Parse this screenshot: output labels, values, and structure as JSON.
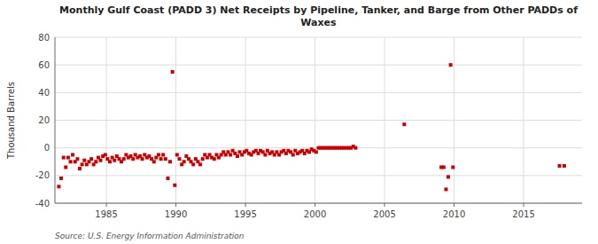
{
  "chart_data": {
    "type": "scatter",
    "title": "Monthly Gulf Coast (PADD 3) Net Receipts by Pipeline, Tanker, and Barge from Other PADDs of\nWaxes",
    "y_label": "Thousand Barrels",
    "annotations": [
      "Source: U.S. Energy Information Administration"
    ],
    "color": "#cc0000",
    "marker": "square",
    "grid": true,
    "xlim": [
      1981.3,
      2019.2
    ],
    "xticks": [
      1985,
      1990,
      1995,
      2000,
      2005,
      2010,
      2015
    ],
    "ylim": [
      -40,
      80
    ],
    "yticks": [
      -40,
      -20,
      0,
      20,
      40,
      60,
      80
    ],
    "x": [
      1981.58,
      1981.75,
      1981.92,
      1982.08,
      1982.25,
      1982.42,
      1982.58,
      1982.75,
      1982.92,
      1983.08,
      1983.25,
      1983.42,
      1983.58,
      1983.75,
      1983.92,
      1984.08,
      1984.25,
      1984.42,
      1984.58,
      1984.75,
      1984.92,
      1985.08,
      1985.25,
      1985.42,
      1985.58,
      1985.75,
      1985.92,
      1986.08,
      1986.25,
      1986.42,
      1986.58,
      1986.75,
      1986.92,
      1987.08,
      1987.25,
      1987.42,
      1987.58,
      1987.75,
      1987.92,
      1988.08,
      1988.25,
      1988.42,
      1988.58,
      1988.75,
      1988.92,
      1989.08,
      1989.25,
      1989.42,
      1989.58,
      1989.75,
      1989.92,
      1990.08,
      1990.25,
      1990.42,
      1990.58,
      1990.75,
      1990.92,
      1991.08,
      1991.25,
      1991.42,
      1991.58,
      1991.75,
      1991.92,
      1992.08,
      1992.25,
      1992.42,
      1992.58,
      1992.75,
      1992.92,
      1993.08,
      1993.25,
      1993.42,
      1993.58,
      1993.75,
      1993.92,
      1994.08,
      1994.25,
      1994.42,
      1994.58,
      1994.75,
      1994.92,
      1995.08,
      1995.25,
      1995.42,
      1995.58,
      1995.75,
      1995.92,
      1996.08,
      1996.25,
      1996.42,
      1996.58,
      1996.75,
      1996.92,
      1997.08,
      1997.25,
      1997.42,
      1997.58,
      1997.75,
      1997.92,
      1998.08,
      1998.25,
      1998.42,
      1998.58,
      1998.75,
      1998.92,
      1999.08,
      1999.25,
      1999.42,
      1999.58,
      1999.75,
      1999.92,
      2000.08,
      2000.25,
      2000.42,
      2000.58,
      2000.75,
      2000.92,
      2001.08,
      2001.25,
      2001.42,
      2001.58,
      2001.75,
      2001.92,
      2002.08,
      2002.25,
      2002.42,
      2002.58,
      2002.75,
      2002.92,
      2006.42,
      2009.08,
      2009.25,
      2009.42,
      2009.58,
      2009.75,
      2009.92,
      2017.58,
      2017.92
    ],
    "values": [
      -28,
      -22,
      -7,
      -14,
      -7,
      -10,
      -5,
      -10,
      -8,
      -15,
      -12,
      -9,
      -12,
      -10,
      -8,
      -12,
      -10,
      -7,
      -9,
      -6,
      -5,
      -8,
      -10,
      -7,
      -9,
      -6,
      -8,
      -10,
      -8,
      -5,
      -7,
      -6,
      -8,
      -5,
      -7,
      -6,
      -8,
      -5,
      -7,
      -6,
      -8,
      -10,
      -7,
      -5,
      -8,
      -5,
      -8,
      -22,
      -10,
      55,
      -27,
      -5,
      -8,
      -12,
      -10,
      -6,
      -8,
      -10,
      -12,
      -8,
      -10,
      -12,
      -8,
      -5,
      -7,
      -5,
      -7,
      -8,
      -5,
      -7,
      -5,
      -3,
      -5,
      -3,
      -5,
      -2,
      -4,
      -6,
      -3,
      -5,
      -3,
      -2,
      -4,
      -5,
      -3,
      -2,
      -4,
      -2,
      -3,
      -5,
      -2,
      -4,
      -3,
      -5,
      -3,
      -5,
      -3,
      -2,
      -4,
      -2,
      -3,
      -5,
      -2,
      -4,
      -3,
      -2,
      -4,
      -2,
      -3,
      -1,
      -2,
      -3,
      0,
      0,
      0,
      0,
      0,
      0,
      0,
      0,
      0,
      0,
      0,
      0,
      0,
      0,
      0,
      1,
      0,
      17,
      -14,
      -14,
      -30,
      -21,
      60,
      -14,
      -13,
      -13
    ]
  }
}
